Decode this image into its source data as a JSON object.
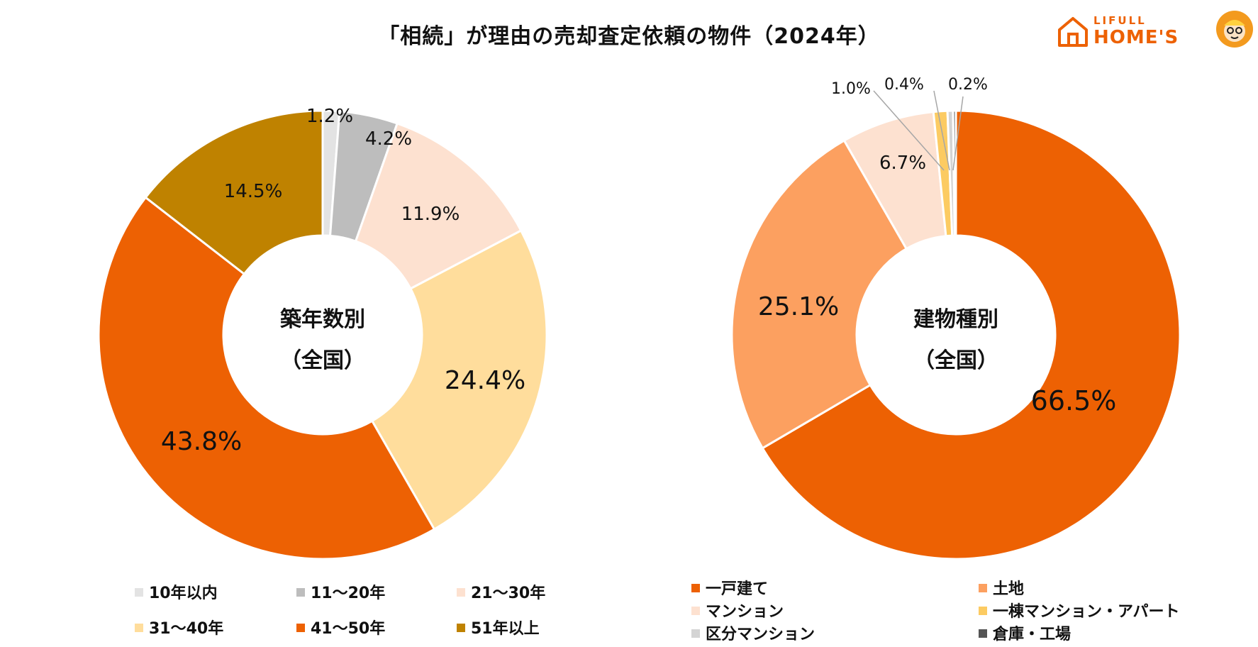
{
  "title": "「相続」が理由の売却査定依頼の物件（2024年）",
  "logo": {
    "top": "LIFULL",
    "bottom": "HOME'S"
  },
  "chart_data": [
    {
      "type": "pie",
      "center_label": [
        "築年数別",
        "（全国）"
      ],
      "categories": [
        "10年以内",
        "11～20年",
        "21～30年",
        "31～40年",
        "41～50年",
        "51年以上"
      ],
      "values": [
        1.2,
        4.2,
        11.9,
        24.4,
        43.8,
        14.5
      ],
      "value_labels": [
        "1.2%",
        "4.2%",
        "11.9%",
        "24.4%",
        "43.8%",
        "14.5%"
      ],
      "colors": [
        "#E3E3E3",
        "#BDBDBD",
        "#FDE1D0",
        "#FFDD9C",
        "#ED6103",
        "#BF8200"
      ],
      "legend_placement": "bottom"
    },
    {
      "type": "pie",
      "center_label": [
        "建物種別",
        "（全国）"
      ],
      "categories": [
        "一戸建て",
        "土地",
        "マンション",
        "一棟マンション・アパート",
        "区分マンション",
        "倉庫・工場"
      ],
      "values": [
        66.5,
        25.1,
        6.7,
        1.0,
        0.4,
        0.2
      ],
      "value_labels": [
        "66.5%",
        "25.1%",
        "6.7%",
        "1.0%",
        "0.4%",
        "0.2%"
      ],
      "colors": [
        "#ED6103",
        "#FCA060",
        "#FDE1D0",
        "#FCCB62",
        "#D4D4D4",
        "#555555"
      ],
      "legend_placement": "bottom"
    }
  ]
}
